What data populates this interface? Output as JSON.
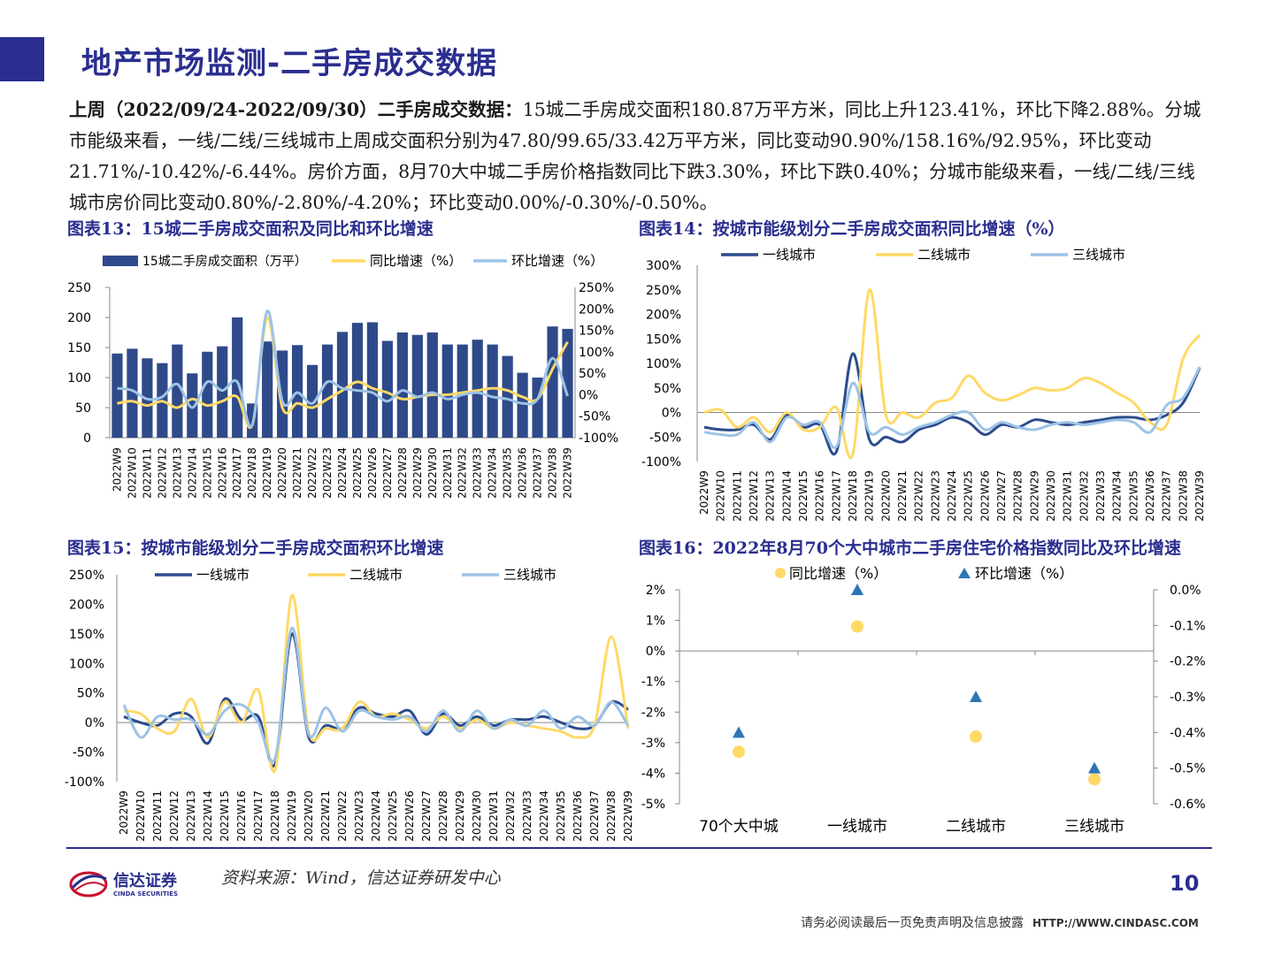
{
  "header": {
    "title": "地产市场监测-二手房成交数据",
    "summary_bold": "上周（2022/09/24-2022/09/30）二手房成交数据：",
    "summary_text": "15城二手房成交面积180.87万平方米，同比上升123.41%，环比下降2.88%。分城市能级来看，一线/二线/三线城市上周成交面积分别为47.80/99.65/33.42万平方米，同比变动90.90%/158.16%/92.95%，环比变动21.71%/-10.42%/-6.44%。房价方面，8月70大中城二手房价格指数同比下跌3.30%，环比下跌0.40%；分城市能级来看，一线/二线/三线城市房价同比变动0.80%/-2.80%/-4.20%；环比变动0.00%/-0.30%/-0.50%。"
  },
  "colors": {
    "brand": "#2a2e8f",
    "tier1": "#2b4c8c",
    "tier2": "#ffd966",
    "tier3": "#9dc3e6",
    "bar": "#2f4a8a"
  },
  "chart_data": [
    {
      "id": "fig13",
      "title": "图表13：15城二手房成交面积及同比和环比增速",
      "type": "bar",
      "legend": [
        "15城二手房成交面积（万平）",
        "同比增速（%）",
        "环比增速（%）"
      ],
      "categories": [
        "2022W9",
        "2022W10",
        "2022W11",
        "2022W12",
        "2022W13",
        "2022W14",
        "2022W15",
        "2022W16",
        "2022W17",
        "2022W18",
        "2022W19",
        "2022W20",
        "2022W21",
        "2022W22",
        "2022W23",
        "2022W24",
        "2022W25",
        "2022W26",
        "2022W27",
        "2022W28",
        "2022W29",
        "2022W30",
        "2022W31",
        "2022W32",
        "2022W33",
        "2022W34",
        "2022W35",
        "2022W36",
        "2022W37",
        "2022W38",
        "2022W39"
      ],
      "series": [
        {
          "name": "15城二手房成交面积（万平）",
          "axis": "left",
          "type": "bar",
          "values": [
            140,
            148,
            132,
            124,
            155,
            107,
            143,
            152,
            200,
            57,
            160,
            145,
            154,
            121,
            155,
            176,
            191,
            192,
            161,
            175,
            171,
            175,
            155,
            155,
            163,
            155,
            136,
            108,
            100,
            185,
            181
          ]
        },
        {
          "name": "同比增速（%）",
          "axis": "right",
          "type": "line",
          "values": [
            -20,
            -15,
            -25,
            -15,
            -30,
            -10,
            -25,
            -15,
            -5,
            -70,
            180,
            -30,
            -20,
            -30,
            -10,
            10,
            30,
            15,
            5,
            -10,
            -5,
            0,
            0,
            5,
            10,
            15,
            10,
            -5,
            -10,
            60,
            123
          ]
        },
        {
          "name": "环比增速（%）",
          "axis": "right",
          "type": "line",
          "values": [
            15,
            10,
            -10,
            -5,
            25,
            -30,
            30,
            10,
            30,
            -70,
            195,
            -15,
            5,
            -20,
            30,
            15,
            10,
            5,
            -15,
            10,
            -5,
            5,
            -10,
            0,
            5,
            -5,
            -10,
            -20,
            -10,
            85,
            -3
          ]
        }
      ],
      "ylim_left": [
        0,
        250
      ],
      "left_ticks": [
        "0",
        "50",
        "100",
        "150",
        "200",
        "250"
      ],
      "ylim_right": [
        -100,
        250
      ],
      "right_ticks": [
        "-100%",
        "-50%",
        "0%",
        "50%",
        "100%",
        "150%",
        "200%",
        "250%"
      ]
    },
    {
      "id": "fig14",
      "title": "图表14：按城市能级划分二手房成交面积同比增速（%）",
      "type": "line",
      "legend": [
        "一线城市",
        "二线城市",
        "三线城市"
      ],
      "categories": [
        "2022W9",
        "2022W10",
        "2022W11",
        "2022W12",
        "2022W13",
        "2022W14",
        "2022W15",
        "2022W16",
        "2022W17",
        "2022W18",
        "2022W19",
        "2022W20",
        "2022W21",
        "2022W22",
        "2022W23",
        "2022W24",
        "2022W25",
        "2022W26",
        "2022W27",
        "2022W28",
        "2022W29",
        "2022W30",
        "2022W31",
        "2022W32",
        "2022W33",
        "2022W34",
        "2022W35",
        "2022W36",
        "2022W37",
        "2022W38",
        "2022W39"
      ],
      "series": [
        {
          "name": "一线城市",
          "values": [
            -30,
            -35,
            -35,
            -25,
            -55,
            -5,
            -30,
            -25,
            -80,
            120,
            -55,
            -50,
            -60,
            -35,
            -25,
            -10,
            -20,
            -45,
            -25,
            -30,
            -15,
            -20,
            -25,
            -20,
            -15,
            -10,
            -10,
            -15,
            -5,
            20,
            91
          ]
        },
        {
          "name": "二线城市",
          "values": [
            0,
            5,
            -30,
            -10,
            -40,
            0,
            -35,
            -30,
            10,
            -85,
            250,
            -5,
            0,
            -10,
            20,
            30,
            75,
            40,
            25,
            35,
            50,
            45,
            50,
            70,
            60,
            40,
            20,
            -20,
            -25,
            110,
            158
          ]
        },
        {
          "name": "三线城市",
          "values": [
            -40,
            -45,
            -45,
            -20,
            -60,
            -10,
            -25,
            -20,
            -70,
            60,
            -40,
            -30,
            -45,
            -30,
            -20,
            -5,
            0,
            -35,
            -20,
            -30,
            -35,
            -25,
            -20,
            -25,
            -20,
            -15,
            -20,
            -40,
            15,
            30,
            93
          ]
        }
      ],
      "ylim": [
        -100,
        300
      ],
      "y_ticks": [
        "-100%",
        "-50%",
        "0%",
        "50%",
        "100%",
        "150%",
        "200%",
        "250%",
        "300%"
      ]
    },
    {
      "id": "fig15",
      "title": "图表15：按城市能级划分二手房成交面积环比增速",
      "type": "line",
      "legend": [
        "一线城市",
        "二线城市",
        "三线城市"
      ],
      "categories": [
        "2022W9",
        "2022W10",
        "2022W11",
        "2022W12",
        "2022W13",
        "2022W14",
        "2022W15",
        "2022W16",
        "2022W17",
        "2022W18",
        "2022W19",
        "2022W20",
        "2022W21",
        "2022W22",
        "2022W23",
        "2022W24",
        "2022W25",
        "2022W26",
        "2022W27",
        "2022W28",
        "2022W29",
        "2022W30",
        "2022W31",
        "2022W32",
        "2022W33",
        "2022W34",
        "2022W35",
        "2022W36",
        "2022W37",
        "2022W38",
        "2022W39"
      ],
      "series": [
        {
          "name": "一线城市",
          "values": [
            10,
            0,
            -5,
            15,
            10,
            -35,
            40,
            5,
            10,
            -70,
            150,
            -25,
            -5,
            -10,
            25,
            15,
            10,
            20,
            -20,
            15,
            -5,
            10,
            -5,
            5,
            5,
            10,
            0,
            -10,
            -5,
            35,
            22
          ]
        },
        {
          "name": "二线城市",
          "values": [
            20,
            15,
            -10,
            -15,
            40,
            -25,
            35,
            0,
            55,
            -80,
            215,
            -15,
            -10,
            -10,
            35,
            10,
            15,
            5,
            -10,
            10,
            -10,
            5,
            -10,
            0,
            -5,
            -10,
            -15,
            -25,
            -5,
            145,
            -10
          ]
        },
        {
          "name": "三线城市",
          "values": [
            30,
            -25,
            10,
            5,
            5,
            -20,
            20,
            30,
            0,
            -60,
            160,
            -20,
            25,
            -15,
            20,
            10,
            5,
            10,
            -15,
            20,
            -15,
            20,
            -10,
            5,
            -5,
            20,
            -10,
            10,
            -5,
            35,
            -6
          ]
        }
      ],
      "ylim": [
        -100,
        250
      ],
      "y_ticks": [
        "-100%",
        "-50%",
        "0%",
        "50%",
        "100%",
        "150%",
        "200%",
        "250%"
      ]
    },
    {
      "id": "fig16",
      "title": "图表16：2022年8月70个大中城市二手房住宅价格指数同比及环比增速",
      "type": "scatter",
      "legend": [
        "同比增速（%）",
        "环比增速（%）"
      ],
      "categories": [
        "70个大中城",
        "一线城市",
        "二线城市",
        "三线城市"
      ],
      "series": [
        {
          "name": "同比增速（%）",
          "axis": "left",
          "values": [
            -3.3,
            0.8,
            -2.8,
            -4.2
          ]
        },
        {
          "name": "环比增速（%）",
          "axis": "right",
          "values": [
            -0.4,
            0.0,
            -0.3,
            -0.5
          ]
        }
      ],
      "ylim_left": [
        -5,
        2
      ],
      "left_ticks": [
        "-5%",
        "-4%",
        "-3%",
        "-2%",
        "-1%",
        "0%",
        "1%",
        "2%"
      ],
      "ylim_right": [
        -0.6,
        0.0
      ],
      "right_ticks": [
        "-0.6%",
        "-0.5%",
        "-0.4%",
        "-0.3%",
        "-0.2%",
        "-0.1%",
        "0.0%"
      ]
    }
  ],
  "footer": {
    "logo_text_cn": "信达证券",
    "logo_text_en": "CINDA SECURITIES",
    "source": "资料来源：Wind，信达证券研发中心",
    "page_number": "10",
    "disclaimer": "请务必阅读最后一页免责声明及信息披露",
    "url": "HTTP://WWW.CINDASC.COM"
  }
}
